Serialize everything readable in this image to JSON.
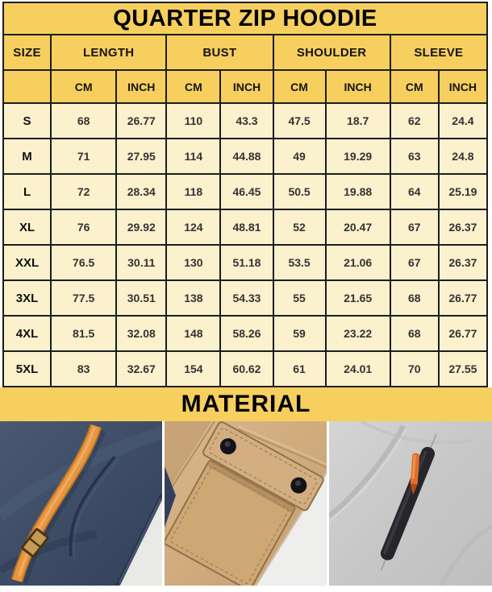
{
  "title": "QUARTER ZIP HOODIE",
  "material_section_label": "MATERIAL",
  "colors": {
    "header_yellow": "#f6cf5e",
    "cell_cream": "#fbf1cd",
    "border_black": "#1d1d1d",
    "accent_orange": "#e8963f",
    "navy_fabric": "#3a4862",
    "khaki_fabric": "#cfaa7c",
    "gray_fabric": "#cacaca"
  },
  "size_chart": {
    "measurement_groups": [
      "SIZE",
      "LENGTH",
      "BUST",
      "SHOULDER",
      "SLEEVE"
    ],
    "unit_labels": [
      "CM",
      "INCH"
    ],
    "rows": [
      {
        "size": "S",
        "values": [
          "68",
          "26.77",
          "110",
          "43.3",
          "47.5",
          "18.7",
          "62",
          "24.4"
        ]
      },
      {
        "size": "M",
        "values": [
          "71",
          "27.95",
          "114",
          "44.88",
          "49",
          "19.29",
          "63",
          "24.8"
        ]
      },
      {
        "size": "L",
        "values": [
          "72",
          "28.34",
          "118",
          "46.45",
          "50.5",
          "19.88",
          "64",
          "25.19"
        ]
      },
      {
        "size": "XL",
        "values": [
          "76",
          "29.92",
          "124",
          "48.81",
          "52",
          "20.47",
          "67",
          "26.37"
        ]
      },
      {
        "size": "XXL",
        "values": [
          "76.5",
          "30.11",
          "130",
          "51.18",
          "53.5",
          "21.06",
          "67",
          "26.37"
        ]
      },
      {
        "size": "3XL",
        "values": [
          "77.5",
          "30.51",
          "138",
          "54.33",
          "55",
          "21.65",
          "68",
          "26.77"
        ]
      },
      {
        "size": "4XL",
        "values": [
          "81.5",
          "32.08",
          "148",
          "58.26",
          "59",
          "23.22",
          "68",
          "26.77"
        ]
      },
      {
        "size": "5XL",
        "values": [
          "83",
          "32.67",
          "154",
          "60.62",
          "61",
          "24.01",
          "70",
          "27.55"
        ]
      }
    ]
  },
  "photos": [
    {
      "name": "navy-fleece-orange-drawstring"
    },
    {
      "name": "khaki-flap-pocket-snap-buttons"
    },
    {
      "name": "gray-fleece-zip-pocket-orange-pull"
    }
  ]
}
